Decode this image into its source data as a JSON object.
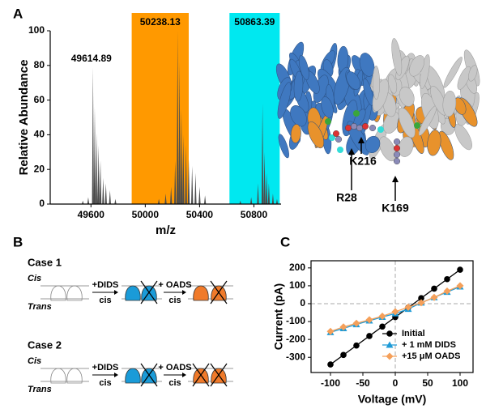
{
  "panel_labels": {
    "a": "A",
    "b": "B",
    "c": "C"
  },
  "chart_data": [
    {
      "type": "bar",
      "y_label": "Relative Abundance",
      "x_label": "m/z",
      "x": [
        49540,
        49580,
        49614.89,
        49628,
        49642,
        49656,
        49670,
        49690,
        49710,
        49740,
        49780,
        50100,
        50150,
        50190,
        50220,
        50238.13,
        50252,
        50266,
        50280,
        50300,
        50320,
        50345,
        50370,
        50400,
        50440,
        50700,
        50780,
        50830,
        50863.39,
        50878,
        50893,
        50910,
        50940,
        50970
      ],
      "values": [
        2,
        4,
        79,
        56,
        41,
        34,
        25,
        15,
        12,
        8,
        3,
        3,
        6,
        10,
        25,
        100,
        82,
        55,
        40,
        34,
        26,
        22,
        18,
        10,
        5,
        2,
        4,
        12,
        58,
        30,
        18,
        12,
        6,
        3
      ],
      "color": "#4d4d4d",
      "xlim": [
        49300,
        51000
      ],
      "ylim": [
        0,
        100
      ],
      "xticks": [
        49600,
        50000,
        50400,
        50800
      ],
      "yticks": [
        0,
        20,
        40,
        60,
        80,
        100
      ],
      "highlights": [
        {
          "x": [
            49900,
            50320
          ],
          "color": "#ff9900",
          "label": "50238.13"
        },
        {
          "x": [
            50620,
            50990
          ],
          "color": "#00e8f0",
          "label": "50863.39"
        }
      ],
      "annotation": "49614.89"
    },
    {
      "type": "line",
      "x_label": "Voltage (mV)",
      "y_label": "Current (pA)",
      "x": [
        -100,
        -80,
        -60,
        -40,
        -20,
        0,
        20,
        40,
        60,
        80,
        100
      ],
      "series": [
        {
          "name": "Initial",
          "color": "#000000",
          "marker": "circle",
          "values": [
            -340,
            -287,
            -234,
            -181,
            -128,
            -75,
            -22,
            31,
            84,
            137,
            190
          ]
        },
        {
          "name": "+ 1 mM DIDS",
          "color": "#1f9bd7",
          "marker": "triangle",
          "values": [
            -160,
            -138,
            -116,
            -95,
            -75,
            -55,
            -30,
            5,
            35,
            65,
            95
          ]
        },
        {
          "name": "+15 μM OADS",
          "color": "#f5a05a",
          "marker": "diamond",
          "values": [
            -155,
            -130,
            -110,
            -90,
            -70,
            -45,
            -20,
            5,
            35,
            70,
            100
          ]
        }
      ],
      "xlim": [
        -130,
        120
      ],
      "ylim": [
        -385,
        240
      ],
      "xticks": [
        -100,
        -50,
        0,
        50,
        100
      ],
      "yticks": [
        -300,
        -200,
        -100,
        0,
        100,
        200
      ],
      "zero_lines": true,
      "legend": "lower right"
    }
  ],
  "structure": {
    "labels": [
      "K216",
      "R28",
      "K169"
    ]
  },
  "scheme": {
    "cases": [
      {
        "title": "Case 1",
        "cis": "Cis",
        "trans": "Trans",
        "steps": [
          {
            "reagent": "+DIDS",
            "side": "cis"
          },
          {
            "reagent": "+ OADS",
            "side": "cis"
          }
        ]
      },
      {
        "title": "Case 2",
        "cis": "Cis",
        "trans": "Trans",
        "steps": [
          {
            "reagent": "+DIDS",
            "side": "cis"
          },
          {
            "reagent": "+ OADS",
            "side": "cis"
          }
        ]
      }
    ]
  }
}
